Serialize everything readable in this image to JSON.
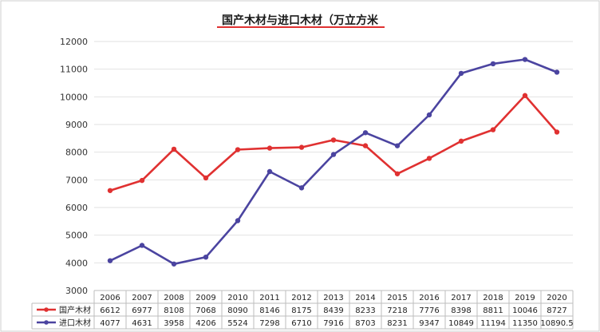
{
  "chart_data": {
    "type": "line",
    "title": "国产木材与进口木材（万立方米",
    "ylim": [
      3000,
      12000
    ],
    "yticks": [
      3000,
      4000,
      5000,
      6000,
      7000,
      8000,
      9000,
      10000,
      11000,
      12000
    ],
    "categories": [
      "2006",
      "2007",
      "2008",
      "2009",
      "2010",
      "2011",
      "2012",
      "2013",
      "2014",
      "2015",
      "2016",
      "2017",
      "2018",
      "2019",
      "2020"
    ],
    "grid": true,
    "legend": "table-left",
    "series": [
      {
        "name": "国产木材",
        "color": "#e03131",
        "values": [
          6612,
          6977,
          8108,
          7068,
          8090,
          8146,
          8175,
          8439,
          8233,
          7218,
          7776,
          8398,
          8811,
          10046,
          8727
        ],
        "labels": [
          "6612",
          "6977",
          "8108",
          "7068",
          "8090",
          "8146",
          "8175",
          "8439",
          "8233",
          "7218",
          "7776",
          "8398",
          "8811",
          "10046",
          "8727"
        ]
      },
      {
        "name": "进口木材",
        "color": "#4b44a0",
        "values": [
          4077,
          4631,
          3958,
          4206,
          5524,
          7298,
          6710,
          7916,
          8703,
          8231,
          9347,
          10849,
          11194,
          11350,
          10890.5
        ],
        "labels": [
          "4077",
          "4631",
          "3958",
          "4206",
          "5524",
          "7298",
          "6710",
          "7916",
          "8703",
          "8231",
          "9347",
          "10849",
          "11194",
          "11350",
          "10890.5"
        ]
      }
    ]
  }
}
